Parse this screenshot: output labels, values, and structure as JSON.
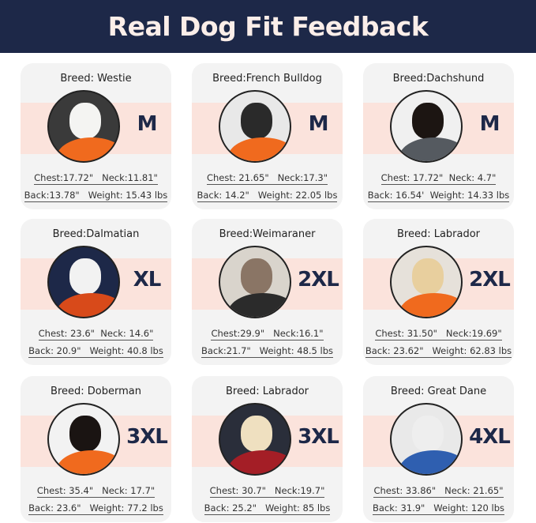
{
  "header": {
    "title": "Real Dog Fit Feedback"
  },
  "colors": {
    "header_bg": "#1d2848",
    "title": "#fbeee9",
    "band": "#fbe3dc",
    "card": "#f3f3f3",
    "size_text": "#1d2848"
  },
  "cards": [
    {
      "breed": "Breed: Westie",
      "size": "M",
      "line1": "Chest:17.72\"   Neck:11.81\"",
      "line2": "Back:13.78\"   Weight: 15.43 lbs",
      "sweater": "#f06a1e",
      "dog": "#f4f4f2",
      "bg": "#3a3a3a"
    },
    {
      "breed": "Breed:French Bulldog",
      "size": "M",
      "line1": "Chest: 21.65\"   Neck:17.3\"",
      "line2": "Back: 14.2\"   Weight: 22.05 lbs",
      "sweater": "#f06a1e",
      "dog": "#2a2a2a",
      "bg": "#e8e8e8"
    },
    {
      "breed": "Breed:Dachshund",
      "size": "M",
      "line1": "Chest: 17.72\"  Neck: 4.7\"",
      "line2": "Back: 16.54'  Weight: 14.33 lbs",
      "sweater": "#555a60",
      "dog": "#1c1512",
      "bg": "#f0f0f0"
    },
    {
      "breed": "Breed:Dalmatian",
      "size": "XL",
      "line1": "Chest: 23.6\"  Neck: 14.6\"",
      "line2": "Back: 20.9\"   Weight: 40.8 lbs",
      "sweater": "#d84a1a",
      "dog": "#f2f2f2",
      "bg": "#1d2848"
    },
    {
      "breed": "Breed:Weimaraner",
      "size": "2XL",
      "line1": "Chest:29.9\"   Neck:16.1\"",
      "line2": "Back:21.7\"   Weight: 48.5 lbs",
      "sweater": "#2b2b2b",
      "dog": "#8a7565",
      "bg": "#d9d4cc"
    },
    {
      "breed": "Breed: Labrador",
      "size": "2XL",
      "line1": "Chest: 31.50\"   Neck:19.69\"",
      "line2": "Back: 23.62\"   Weight: 62.83 lbs",
      "sweater": "#f06a1e",
      "dog": "#e8cf9e",
      "bg": "#e6e1da"
    },
    {
      "breed": "Breed: Doberman",
      "size": "3XL",
      "line1": "Chest: 35.4\"   Neck: 17.7\"",
      "line2": "Back: 23.6\"   Weight: 77.2 lbs",
      "sweater": "#f06a1e",
      "dog": "#1a1412",
      "bg": "#f2f2f2"
    },
    {
      "breed": "Breed: Labrador",
      "size": "3XL",
      "line1": "Chest: 30.7\"   Neck:19.7\"",
      "line2": "Back: 25.2\"   Weight: 85 lbs",
      "sweater": "#a41e26",
      "dog": "#efe0c0",
      "bg": "#2a2e3a"
    },
    {
      "breed": "Breed: Great Dane",
      "size": "4XL",
      "line1": "Chest: 33.86\"   Neck: 21.65\"",
      "line2": "Back: 31.9\"   Weight: 120 lbs",
      "sweater": "#2f5fb0",
      "dog": "#eeeeee",
      "bg": "#e9e9e9"
    }
  ]
}
